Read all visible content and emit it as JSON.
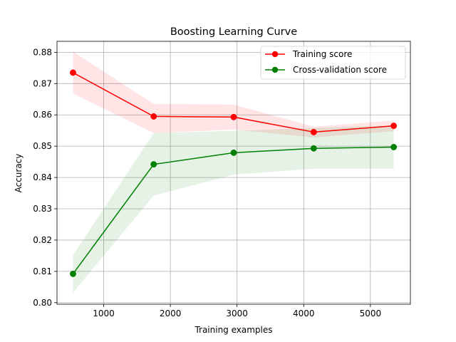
{
  "chart_data": {
    "type": "line",
    "title": "Boosting Learning Curve",
    "xlabel": "Training examples",
    "ylabel": "Accuracy",
    "xlim": [
      300,
      5600
    ],
    "ylim": [
      0.7995,
      0.8835
    ],
    "xticks": [
      1000,
      2000,
      3000,
      4000,
      5000
    ],
    "yticks": [
      0.8,
      0.81,
      0.82,
      0.83,
      0.84,
      0.85,
      0.86,
      0.87,
      0.88
    ],
    "x": [
      540,
      1750,
      2950,
      4150,
      5350
    ],
    "grid": true,
    "legend_position": "top-right",
    "series": [
      {
        "name": "Training score",
        "color": "#ff0000",
        "marker": "circle",
        "values": [
          0.8735,
          0.8595,
          0.8593,
          0.8545,
          0.8565
        ],
        "band_lower": [
          0.8668,
          0.8542,
          0.8553,
          0.8528,
          0.8548
        ],
        "band_upper": [
          0.8802,
          0.8635,
          0.8633,
          0.8562,
          0.8582
        ],
        "band_color": "#ff0000"
      },
      {
        "name": "Cross-validation score",
        "color": "#008000",
        "marker": "circle",
        "values": [
          0.8092,
          0.8442,
          0.8479,
          0.8493,
          0.8497
        ],
        "band_lower": [
          0.8032,
          0.8342,
          0.8409,
          0.8428,
          0.8428
        ],
        "band_upper": [
          0.8152,
          0.8542,
          0.8549,
          0.8558,
          0.8566
        ],
        "band_color": "#008000"
      }
    ]
  }
}
